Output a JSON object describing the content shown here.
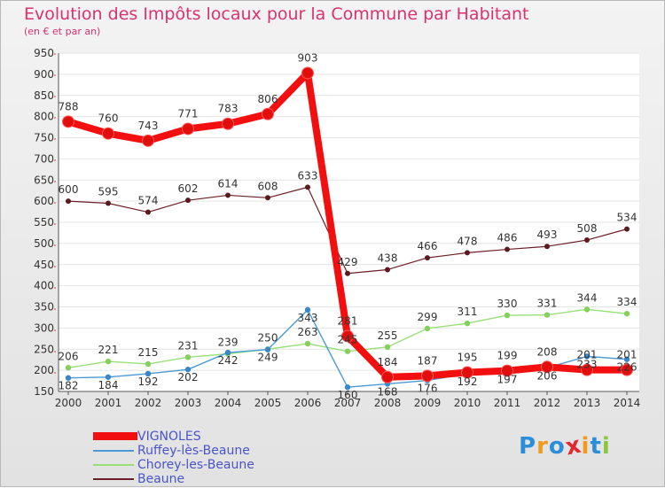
{
  "header": {
    "title": "Evolution des Impôts locaux pour la Commune par Habitant",
    "subtitle": "(en € et par an)"
  },
  "brand": {
    "text": "Proxiti",
    "letters": [
      "P",
      "r",
      "o",
      "x",
      "i",
      "t",
      "i"
    ],
    "letter_colors": [
      "#2a8fd8",
      "#f09a1e",
      "#2a8fd8",
      "#e2292f",
      "#f09a1e",
      "#2a8fd8",
      "#8cc63f"
    ]
  },
  "chart_data": {
    "type": "line",
    "title": "Evolution des Impôts locaux pour la Commune par Habitant",
    "subtitle": "(en € et par an)",
    "xlabel": "",
    "ylabel": "",
    "x": [
      "2000",
      "2001",
      "2002",
      "2003",
      "2004",
      "2005",
      "2006",
      "2007",
      "2008",
      "2009",
      "2010",
      "2011",
      "2012",
      "2013",
      "2014"
    ],
    "ylim": [
      150,
      950
    ],
    "yticks": [
      150,
      200,
      250,
      300,
      350,
      400,
      450,
      500,
      550,
      600,
      650,
      700,
      750,
      800,
      850,
      900,
      950
    ],
    "ytick_labels": [
      "150",
      "200",
      "250",
      "300",
      "350",
      "400",
      "450",
      "500",
      "550",
      "600",
      "650",
      "700",
      "750",
      "800",
      "850",
      "900",
      "950"
    ],
    "grid": "horizontal",
    "legend_position": "bottom-left",
    "series": [
      {
        "name": "Beaune",
        "color": "#6b1f26",
        "values": [
          600,
          595,
          574,
          602,
          614,
          608,
          633,
          429,
          438,
          466,
          478,
          486,
          493,
          508,
          534
        ],
        "labels": [
          "600",
          "595",
          "574",
          "602",
          "614",
          "608",
          "633",
          "429",
          "438",
          "466",
          "478",
          "486",
          "493",
          "508",
          "534"
        ]
      },
      {
        "name": "Chorey-les-Beaune",
        "color": "#98e07a",
        "values": [
          206,
          221,
          215,
          231,
          239,
          250,
          263,
          245,
          255,
          299,
          311,
          330,
          331,
          344,
          334
        ],
        "labels": [
          "206",
          "221",
          "215",
          "231",
          "239",
          "250",
          "263",
          "245",
          "255",
          "299",
          "311",
          "330",
          "331",
          "344",
          "334"
        ]
      },
      {
        "name": "Ruffey-lès-Beaune",
        "color": "#4b9ad6",
        "values": [
          182,
          184,
          192,
          202,
          242,
          249,
          343,
          160,
          168,
          176,
          192,
          197,
          206,
          233,
          226
        ],
        "labels": [
          "182",
          "184",
          "192",
          "202",
          "242",
          "249",
          "343",
          "160",
          "168",
          "176",
          "192",
          "197",
          "206",
          "233",
          "226"
        ]
      },
      {
        "name": "VIGNOLES",
        "color": "#f20f0f",
        "values": [
          788,
          760,
          743,
          771,
          783,
          806,
          903,
          281,
          184,
          187,
          195,
          199,
          208,
          201,
          201
        ],
        "labels": [
          "788",
          "760",
          "743",
          "771",
          "783",
          "806",
          "903",
          "281",
          "184",
          "187",
          "195",
          "199",
          "208",
          "201",
          "201"
        ]
      }
    ]
  },
  "legend": {
    "items": [
      {
        "label": "VIGNOLES",
        "color": "#f20f0f"
      },
      {
        "label": "Ruffey-lès-Beaune",
        "color": "#4b9ad6"
      },
      {
        "label": "Chorey-les-Beaune",
        "color": "#98e07a"
      },
      {
        "label": "Beaune",
        "color": "#6b1f26"
      }
    ]
  }
}
